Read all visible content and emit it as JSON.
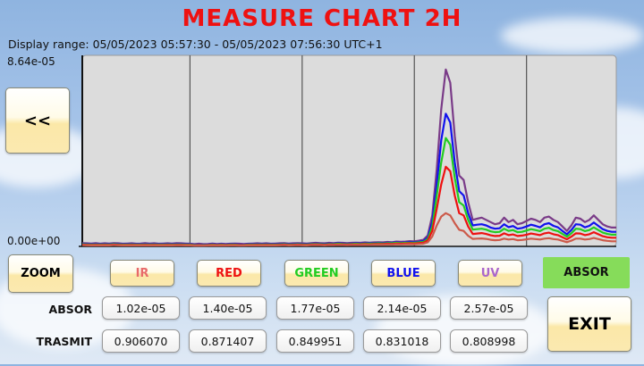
{
  "title": "MEASURE CHART 2H",
  "display_range": "Display range: 05/05/2023 05:57:30 - 05/05/2023 07:56:30 UTC+1",
  "buttons": {
    "back": "<<",
    "zoom": "ZOOM",
    "exit": "EXIT"
  },
  "channels": [
    {
      "key": "ir",
      "label": "IR",
      "color": "#e86a6a"
    },
    {
      "key": "red",
      "label": "RED",
      "color": "#ee1111"
    },
    {
      "key": "green",
      "label": "GREEN",
      "color": "#22cc22"
    },
    {
      "key": "blue",
      "label": "BLUE",
      "color": "#1111ee"
    },
    {
      "key": "uv",
      "label": "UV",
      "color": "#aa66cc"
    },
    {
      "key": "absor",
      "label": "ABSOR",
      "color": "#111111"
    }
  ],
  "rows": {
    "absor_label": "ABSOR",
    "trasmit_label": "TRASMIT",
    "absor_values": [
      "1.02e-05",
      "1.40e-05",
      "1.77e-05",
      "2.14e-05",
      "2.57e-05"
    ],
    "trasmit_values": [
      "0.906070",
      "0.871407",
      "0.849951",
      "0.831018",
      "0.808998"
    ]
  },
  "chart_data": {
    "type": "line",
    "y_tick_labels": [
      "8.64e-05",
      "0.00e+00"
    ],
    "ylim": [
      0,
      8.64e-05
    ],
    "x": [
      0,
      1,
      2,
      3,
      4,
      5,
      6,
      7,
      8,
      9,
      10,
      11,
      12,
      13,
      14,
      15,
      16,
      17,
      18,
      19,
      20,
      21,
      22,
      23,
      24,
      25,
      26,
      27,
      28,
      29,
      30,
      31,
      32,
      33,
      34,
      35,
      36,
      37,
      38,
      39,
      40,
      41,
      42,
      43,
      44,
      45,
      46,
      47,
      48,
      49,
      50,
      51,
      52,
      53,
      54,
      55,
      56,
      57,
      58,
      59,
      60,
      61,
      62,
      63,
      64,
      65,
      66,
      67,
      68,
      69,
      70,
      71,
      72,
      73,
      74,
      75,
      76,
      77,
      78,
      79,
      80,
      81,
      82,
      83,
      84,
      85,
      86,
      87,
      88,
      89,
      90,
      91,
      92,
      93,
      94,
      95,
      96,
      97,
      98,
      99,
      100,
      101,
      102,
      103,
      104,
      105,
      106,
      107,
      108,
      109,
      110,
      111,
      112,
      113,
      114,
      115,
      116,
      117,
      118,
      119
    ],
    "grid_vertical_at": [
      24,
      49,
      74,
      99
    ],
    "series": [
      {
        "key": "uv",
        "color": "#7a3b88",
        "values": [
          1.5e-06,
          1.4e-06,
          1.3e-06,
          1.5e-06,
          1.2e-06,
          1.4e-06,
          1.3e-06,
          1.5e-06,
          1.4e-06,
          1.2e-06,
          1.3e-06,
          1.4e-06,
          1.2e-06,
          1.3e-06,
          1.5e-06,
          1.3e-06,
          1.4e-06,
          1.2e-06,
          1.3e-06,
          1.4e-06,
          1.3e-06,
          1.5e-06,
          1.4e-06,
          1.3e-06,
          1.2e-06,
          1e-06,
          1.2e-06,
          1e-06,
          1.1e-06,
          1.3e-06,
          1.1e-06,
          1.2e-06,
          1.1e-06,
          1.2e-06,
          1.3e-06,
          1.2e-06,
          1.1e-06,
          1.2e-06,
          1.3e-06,
          1.4e-06,
          1.3e-06,
          1.4e-06,
          1.2e-06,
          1.3e-06,
          1.4e-06,
          1.5e-06,
          1.3e-06,
          1.4e-06,
          1.5e-06,
          1.4e-06,
          1.3e-06,
          1.5e-06,
          1.6e-06,
          1.5e-06,
          1.4e-06,
          1.6e-06,
          1.5e-06,
          1.7e-06,
          1.6e-06,
          1.5e-06,
          1.6e-06,
          1.7e-06,
          1.6e-06,
          1.8e-06,
          1.7e-06,
          1.8e-06,
          1.9e-06,
          1.8e-06,
          2e-06,
          1.9e-06,
          2.2e-06,
          2.1e-06,
          2.2e-06,
          2.4e-06,
          2.3e-06,
          2.6e-06,
          3e-06,
          5e-06,
          1.4e-05,
          3.5e-05,
          6.2e-05,
          8e-05,
          7.4e-05,
          5e-05,
          3.2e-05,
          3e-05,
          2e-05,
          1.2e-05,
          1.25e-05,
          1.3e-05,
          1.2e-05,
          1.1e-05,
          1e-05,
          1.05e-05,
          1.3e-05,
          1.1e-05,
          1.2e-05,
          1e-05,
          1.05e-05,
          1.15e-05,
          1.25e-05,
          1.2e-05,
          1.1e-05,
          1.3e-05,
          1.35e-05,
          1.2e-05,
          1.1e-05,
          9e-06,
          7e-06,
          9.5e-06,
          1.3e-05,
          1.25e-05,
          1.1e-05,
          1.2e-05,
          1.4e-05,
          1.2e-05,
          1e-05,
          9e-06,
          8.5e-06,
          8.5e-06
        ]
      },
      {
        "key": "blue",
        "color": "#1111ee",
        "values": [
          1.2e-06,
          1.1e-06,
          1e-06,
          1.1e-06,
          1e-06,
          1.1e-06,
          1e-06,
          1.2e-06,
          1.1e-06,
          1e-06,
          1e-06,
          1.1e-06,
          1e-06,
          1e-06,
          1.1e-06,
          1e-06,
          1.1e-06,
          1e-06,
          1e-06,
          1.1e-06,
          1e-06,
          1.1e-06,
          1.1e-06,
          1e-06,
          1e-06,
          8e-07,
          9e-07,
          8e-07,
          9e-07,
          1e-06,
          9e-07,
          1e-06,
          9e-07,
          1e-06,
          1e-06,
          9e-07,
          9e-07,
          1e-06,
          1e-06,
          1.1e-06,
          1e-06,
          1.1e-06,
          1e-06,
          1e-06,
          1.1e-06,
          1.2e-06,
          1e-06,
          1.1e-06,
          1.2e-06,
          1.1e-06,
          1e-06,
          1.2e-06,
          1.3e-06,
          1.2e-06,
          1.1e-06,
          1.3e-06,
          1.2e-06,
          1.4e-06,
          1.3e-06,
          1.2e-06,
          1.3e-06,
          1.4e-06,
          1.3e-06,
          1.5e-06,
          1.4e-06,
          1.5e-06,
          1.6e-06,
          1.5e-06,
          1.7e-06,
          1.6e-06,
          1.8e-06,
          1.7e-06,
          1.8e-06,
          2e-06,
          1.9e-06,
          2.1e-06,
          2.4e-06,
          4e-06,
          1.1e-05,
          2.8e-05,
          4.8e-05,
          6e-05,
          5.6e-05,
          3.8e-05,
          2.5e-05,
          2.3e-05,
          1.5e-05,
          9.5e-06,
          9.8e-06,
          1e-05,
          9.5e-06,
          8.5e-06,
          8e-06,
          8.2e-06,
          1e-05,
          8.7e-06,
          9.2e-06,
          8e-06,
          8.3e-06,
          9e-06,
          9.8e-06,
          9.3e-06,
          8.6e-06,
          1e-05,
          1.05e-05,
          9.3e-06,
          8.6e-06,
          7e-06,
          5.5e-06,
          7.4e-06,
          1e-05,
          9.8e-06,
          8.6e-06,
          9.3e-06,
          1.08e-05,
          9.3e-06,
          7.8e-06,
          7e-06,
          6.6e-06,
          6.6e-06
        ]
      },
      {
        "key": "green",
        "color": "#22cc22",
        "values": [
          1e-06,
          9e-07,
          8e-07,
          9e-07,
          8e-07,
          9e-07,
          8e-07,
          1e-06,
          9e-07,
          8e-07,
          8e-07,
          9e-07,
          8e-07,
          8e-07,
          9e-07,
          8e-07,
          9e-07,
          8e-07,
          8e-07,
          9e-07,
          8e-07,
          9e-07,
          9e-07,
          8e-07,
          8e-07,
          6e-07,
          7e-07,
          6e-07,
          7e-07,
          8e-07,
          7e-07,
          8e-07,
          7e-07,
          8e-07,
          8e-07,
          7e-07,
          7e-07,
          8e-07,
          8e-07,
          9e-07,
          8e-07,
          9e-07,
          8e-07,
          8e-07,
          9e-07,
          1e-06,
          8e-07,
          9e-07,
          1e-06,
          9e-07,
          8e-07,
          1e-06,
          1.1e-06,
          1e-06,
          9e-07,
          1.1e-06,
          1e-06,
          1.2e-06,
          1.1e-06,
          1e-06,
          1.1e-06,
          1.2e-06,
          1.1e-06,
          1.3e-06,
          1.2e-06,
          1.3e-06,
          1.4e-06,
          1.3e-06,
          1.5e-06,
          1.4e-06,
          1.6e-06,
          1.5e-06,
          1.6e-06,
          1.7e-06,
          1.6e-06,
          1.8e-06,
          2e-06,
          3.4e-06,
          9e-06,
          2.3e-05,
          3.8e-05,
          4.9e-05,
          4.6e-05,
          3.1e-05,
          2e-05,
          1.85e-05,
          1.2e-05,
          7.6e-06,
          7.8e-06,
          8e-06,
          7.6e-06,
          6.8e-06,
          6.4e-06,
          6.6e-06,
          8e-06,
          7e-06,
          7.4e-06,
          6.4e-06,
          6.6e-06,
          7.2e-06,
          7.8e-06,
          7.4e-06,
          6.9e-06,
          8e-06,
          8.4e-06,
          7.4e-06,
          6.9e-06,
          5.6e-06,
          4.4e-06,
          5.9e-06,
          8e-06,
          7.8e-06,
          6.9e-06,
          7.4e-06,
          8.6e-06,
          7.4e-06,
          6.2e-06,
          5.6e-06,
          5.3e-06,
          5.3e-06
        ]
      },
      {
        "key": "red",
        "color": "#ee1111",
        "values": [
          8e-07,
          7e-07,
          6e-07,
          7e-07,
          6e-07,
          7e-07,
          6e-07,
          8e-07,
          7e-07,
          6e-07,
          6e-07,
          7e-07,
          6e-07,
          6e-07,
          7e-07,
          6e-07,
          7e-07,
          6e-07,
          6e-07,
          7e-07,
          6e-07,
          7e-07,
          7e-07,
          6e-07,
          6e-07,
          5e-07,
          5.5e-07,
          5e-07,
          5.5e-07,
          6e-07,
          5.5e-07,
          6e-07,
          5.5e-07,
          6e-07,
          6e-07,
          5.5e-07,
          5.5e-07,
          6e-07,
          6e-07,
          7e-07,
          6e-07,
          7e-07,
          6e-07,
          6e-07,
          7e-07,
          8e-07,
          6e-07,
          7e-07,
          8e-07,
          7e-07,
          6e-07,
          8e-07,
          8.5e-07,
          8e-07,
          7e-07,
          8.5e-07,
          8e-07,
          9e-07,
          8.5e-07,
          8e-07,
          8.5e-07,
          9e-07,
          8.5e-07,
          1e-06,
          9e-07,
          1e-06,
          1.1e-06,
          1e-06,
          1.2e-06,
          1.1e-06,
          1.3e-06,
          1.2e-06,
          1.3e-06,
          1.4e-06,
          1.3e-06,
          1.5e-06,
          1.6e-06,
          2.7e-06,
          7e-06,
          1.7e-05,
          2.8e-05,
          3.6e-05,
          3.4e-05,
          2.3e-05,
          1.5e-05,
          1.4e-05,
          9e-06,
          5.6e-06,
          5.8e-06,
          6e-06,
          5.6e-06,
          5e-06,
          4.7e-06,
          4.8e-06,
          5.9e-06,
          5.1e-06,
          5.4e-06,
          4.7e-06,
          4.9e-06,
          5.3e-06,
          5.8e-06,
          5.5e-06,
          5.1e-06,
          5.9e-06,
          6.2e-06,
          5.5e-06,
          5.1e-06,
          4.1e-06,
          3.2e-06,
          4.4e-06,
          5.9e-06,
          5.8e-06,
          5.1e-06,
          5.5e-06,
          6.4e-06,
          5.5e-06,
          4.6e-06,
          4.1e-06,
          3.9e-06,
          3.9e-06
        ]
      },
      {
        "key": "ir",
        "color": "#cc5a4a",
        "values": [
          6e-07,
          5e-07,
          4.5e-07,
          5e-07,
          4.5e-07,
          5e-07,
          4.5e-07,
          6e-07,
          5e-07,
          4.5e-07,
          4.5e-07,
          5e-07,
          4.5e-07,
          4.5e-07,
          5e-07,
          4.5e-07,
          5e-07,
          4.5e-07,
          4.5e-07,
          5e-07,
          4.5e-07,
          5e-07,
          5e-07,
          4.5e-07,
          4.5e-07,
          3.5e-07,
          4e-07,
          3.5e-07,
          4e-07,
          4.5e-07,
          4e-07,
          4.5e-07,
          4e-07,
          4.5e-07,
          4.5e-07,
          4e-07,
          4e-07,
          4.5e-07,
          4.5e-07,
          5e-07,
          4.5e-07,
          5e-07,
          4.5e-07,
          4.5e-07,
          5e-07,
          6e-07,
          4.5e-07,
          5e-07,
          6e-07,
          5e-07,
          4.5e-07,
          6e-07,
          6.5e-07,
          6e-07,
          5e-07,
          6.5e-07,
          6e-07,
          7e-07,
          6.5e-07,
          6e-07,
          6.5e-07,
          7e-07,
          6.5e-07,
          7.5e-07,
          7e-07,
          7.5e-07,
          8e-07,
          7.5e-07,
          9e-07,
          8e-07,
          9.5e-07,
          9e-07,
          9.5e-07,
          1e-06,
          9.5e-07,
          1.1e-06,
          1.2e-06,
          1.9e-06,
          4.5e-06,
          9.5e-06,
          1.35e-05,
          1.5e-05,
          1.4e-05,
          1.05e-05,
          7.5e-06,
          7e-06,
          4.8e-06,
          3.4e-06,
          3.5e-06,
          3.6e-06,
          3.4e-06,
          3e-06,
          2.8e-06,
          2.9e-06,
          3.5e-06,
          3.1e-06,
          3.3e-06,
          2.8e-06,
          2.9e-06,
          3.2e-06,
          3.5e-06,
          3.3e-06,
          3.1e-06,
          3.5e-06,
          3.7e-06,
          3.3e-06,
          3.1e-06,
          2.5e-06,
          1.9e-06,
          2.6e-06,
          3.5e-06,
          3.5e-06,
          3.1e-06,
          3.3e-06,
          3.8e-06,
          3.3e-06,
          2.8e-06,
          2.5e-06,
          2.3e-06,
          2.3e-06
        ]
      }
    ]
  }
}
